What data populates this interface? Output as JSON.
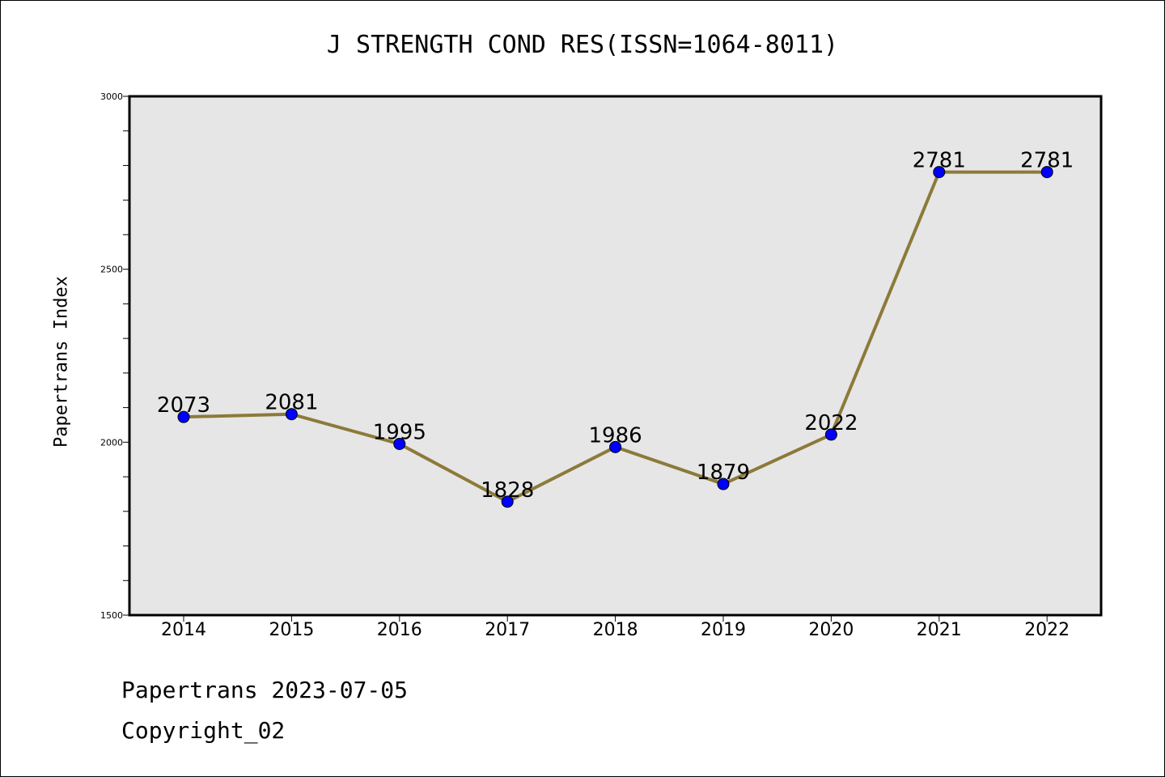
{
  "chart_data": {
    "type": "line",
    "title": "J STRENGTH COND RES(ISSN=1064-8011)",
    "xlabel": "",
    "ylabel": "Papertrans Index",
    "categories": [
      "2014",
      "2015",
      "2016",
      "2017",
      "2018",
      "2019",
      "2020",
      "2021",
      "2022"
    ],
    "series": [
      {
        "values": [
          2073,
          2081,
          1995,
          1828,
          1986,
          1879,
          2022,
          2781,
          2781
        ]
      }
    ],
    "ylim": [
      1500,
      3000
    ],
    "yticks_labeled": [
      "1500",
      "2000",
      "2500",
      "3000"
    ],
    "yticks_minor_step": 100,
    "grid": false,
    "line_color": "#8c7a3a",
    "marker_color": "#0000ff",
    "plot_background": "#e6e6e6"
  },
  "footer": {
    "line1": "Papertrans 2023-07-05",
    "line2": "Copyright_02"
  }
}
